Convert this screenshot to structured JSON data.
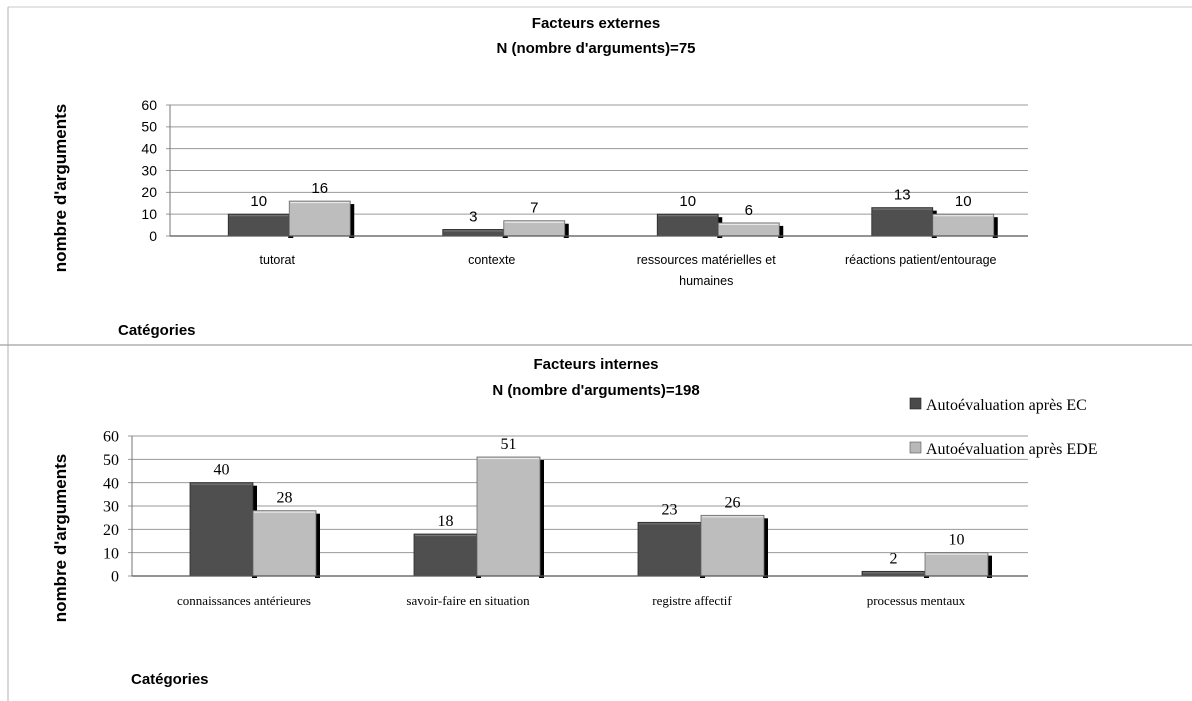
{
  "legend": {
    "items": [
      {
        "label": "Autoévaluation après EC",
        "color": "#4a4a4a"
      },
      {
        "label": "Autoévaluation après EDE",
        "color": "#b8b8b8"
      }
    ]
  },
  "colors": {
    "series_ec": "#4f4f4f",
    "series_ede": "#bdbdbd",
    "grid": "#9a9a9a",
    "frame": "#a0a0a0"
  },
  "chart_data": [
    {
      "type": "bar",
      "title": "Facteurs externes",
      "subtitle": "N (nombre d'arguments)=75",
      "xlabel": "Catégories",
      "ylabel": "nombre d'arguments",
      "categories": [
        "tutorat",
        "contexte",
        "ressources matérielles et humaines",
        "réactions patient/entourage"
      ],
      "category_lines": [
        [
          "tutorat"
        ],
        [
          "contexte"
        ],
        [
          "ressources matérielles et",
          "humaines"
        ],
        [
          "réactions patient/entourage"
        ]
      ],
      "series": [
        {
          "name": "Autoévaluation après EC",
          "values": [
            10,
            3,
            10,
            13
          ]
        },
        {
          "name": "Autoévaluation après EDE",
          "values": [
            16,
            7,
            6,
            10
          ]
        }
      ],
      "ylim": [
        0,
        60
      ],
      "yticks": [
        0,
        10,
        20,
        30,
        40,
        50,
        60
      ],
      "grid": true
    },
    {
      "type": "bar",
      "title": "Facteurs internes",
      "subtitle": "N (nombre d'arguments)=198",
      "xlabel": "Catégories",
      "ylabel": "nombre d'arguments",
      "categories": [
        "connaissances antérieures",
        "savoir-faire en situation",
        "registre affectif",
        "processus mentaux"
      ],
      "category_lines": [
        [
          "connaissances antérieures"
        ],
        [
          "savoir-faire en situation"
        ],
        [
          "registre affectif"
        ],
        [
          "processus mentaux"
        ]
      ],
      "series": [
        {
          "name": "Autoévaluation après EC",
          "values": [
            40,
            18,
            23,
            2
          ]
        },
        {
          "name": "Autoévaluation après EDE",
          "values": [
            28,
            51,
            26,
            10
          ]
        }
      ],
      "ylim": [
        0,
        60
      ],
      "yticks": [
        0,
        10,
        20,
        30,
        40,
        50,
        60
      ],
      "grid": true,
      "legend_position": "right"
    }
  ]
}
